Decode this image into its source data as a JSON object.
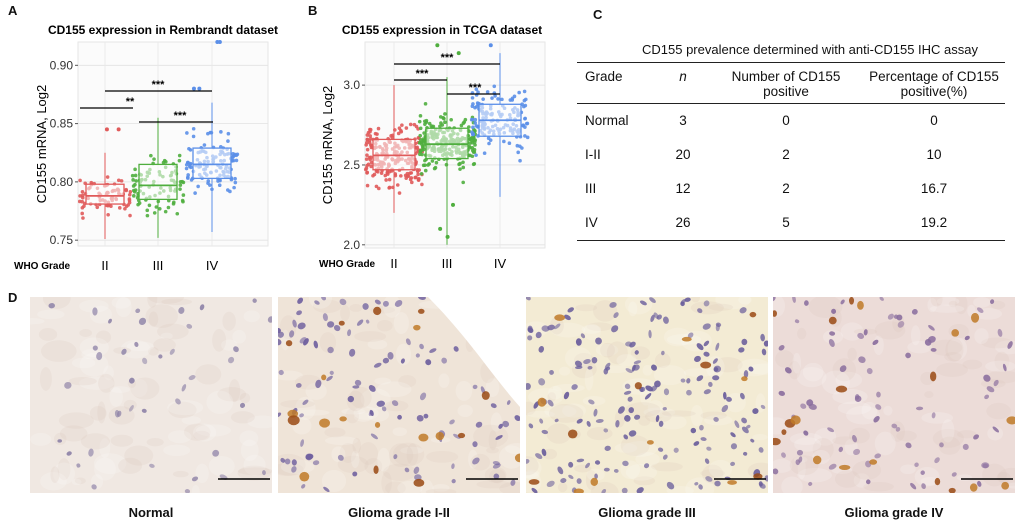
{
  "panels": {
    "a": "A",
    "b": "B",
    "c": "C",
    "d": "D"
  },
  "chart_data": [
    {
      "type": "box",
      "title": "CD155 expression in Rembrandt dataset",
      "xlabel": "WHO Grade",
      "ylabel": "CD155 mRNA, Log2",
      "categories": [
        "II",
        "III",
        "IV"
      ],
      "ylim": [
        0.745,
        0.92
      ],
      "yticks": [
        "0.75",
        "0.80",
        "0.85",
        "0.90"
      ],
      "ytick_values": [
        0.75,
        0.8,
        0.85,
        0.9
      ],
      "colors": [
        "#e05a5a",
        "#4fae3e",
        "#5b8fe8"
      ],
      "boxes": [
        {
          "min": 0.751,
          "q1": 0.781,
          "median": 0.788,
          "q3": 0.798,
          "max": 0.825,
          "n": 80,
          "outliers": [
            0.845,
            0.845
          ]
        },
        {
          "min": 0.752,
          "q1": 0.785,
          "median": 0.797,
          "q3": 0.815,
          "max": 0.855,
          "n": 90,
          "outliers": []
        },
        {
          "min": 0.757,
          "q1": 0.803,
          "median": 0.815,
          "q3": 0.829,
          "max": 0.868,
          "n": 120,
          "outliers": [
            0.88,
            0.88,
            0.92,
            0.92
          ]
        }
      ],
      "significance": [
        {
          "from": 0,
          "to": 1,
          "label": "**"
        },
        {
          "from": 1,
          "to": 2,
          "label": "***"
        },
        {
          "from": 0,
          "to": 2,
          "label": "***"
        }
      ]
    },
    {
      "type": "box",
      "title": "CD155 expression in TCGA dataset",
      "xlabel": "WHO Grade",
      "ylabel": "CD155 mRNA, Log2",
      "categories": [
        "II",
        "III",
        "IV"
      ],
      "ylim": [
        1.98,
        3.27
      ],
      "yticks": [
        "2.0",
        "2.5",
        "3.0"
      ],
      "ytick_values": [
        2.0,
        2.5,
        3.0
      ],
      "colors": [
        "#e05a5a",
        "#4fae3e",
        "#5b8fe8"
      ],
      "boxes": [
        {
          "min": 2.2,
          "q1": 2.47,
          "median": 2.56,
          "q3": 2.66,
          "max": 3.0,
          "n": 220,
          "outliers": []
        },
        {
          "min": 2.0,
          "q1": 2.54,
          "median": 2.63,
          "q3": 2.73,
          "max": 3.05,
          "n": 250,
          "outliers": [
            2.05,
            2.1,
            2.25,
            3.2,
            3.25
          ]
        },
        {
          "min": 2.3,
          "q1": 2.68,
          "median": 2.78,
          "q3": 2.88,
          "max": 3.2,
          "n": 150,
          "outliers": [
            3.25
          ]
        }
      ],
      "significance": [
        {
          "from": 0,
          "to": 1,
          "label": "***"
        },
        {
          "from": 1,
          "to": 2,
          "label": "***"
        },
        {
          "from": 0,
          "to": 2,
          "label": "***"
        }
      ]
    }
  ],
  "table": {
    "title": "CD155 prevalence determined with anti-CD155 IHC assay",
    "headers": [
      "Grade",
      "n",
      "Number of CD155\npositive",
      "Percentage of CD155\npositive(%)"
    ],
    "rows": [
      [
        "Normal",
        "3",
        "0",
        "0"
      ],
      [
        "I-II",
        "20",
        "2",
        "10"
      ],
      [
        "III",
        "12",
        "2",
        "16.7"
      ],
      [
        "IV",
        "26",
        "5",
        "19.2"
      ]
    ]
  },
  "histology": [
    {
      "caption": "Normal",
      "background": "#f0e8e2",
      "nuclei": 40,
      "brown_cells": 0,
      "nucleus_color": "#8f84a8"
    },
    {
      "caption": "Glioma grade I-II",
      "background": "#efe4d8",
      "nuclei": 110,
      "brown_cells": 22,
      "nucleus_color": "#6e5f9e"
    },
    {
      "caption": "Glioma grade III",
      "background": "#f3ebd4",
      "nuclei": 170,
      "brown_cells": 14,
      "nucleus_color": "#6b5f9c"
    },
    {
      "caption": "Glioma grade IV",
      "background": "#ecdcd8",
      "nuclei": 80,
      "brown_cells": 20,
      "nucleus_color": "#8a6e9e"
    }
  ]
}
